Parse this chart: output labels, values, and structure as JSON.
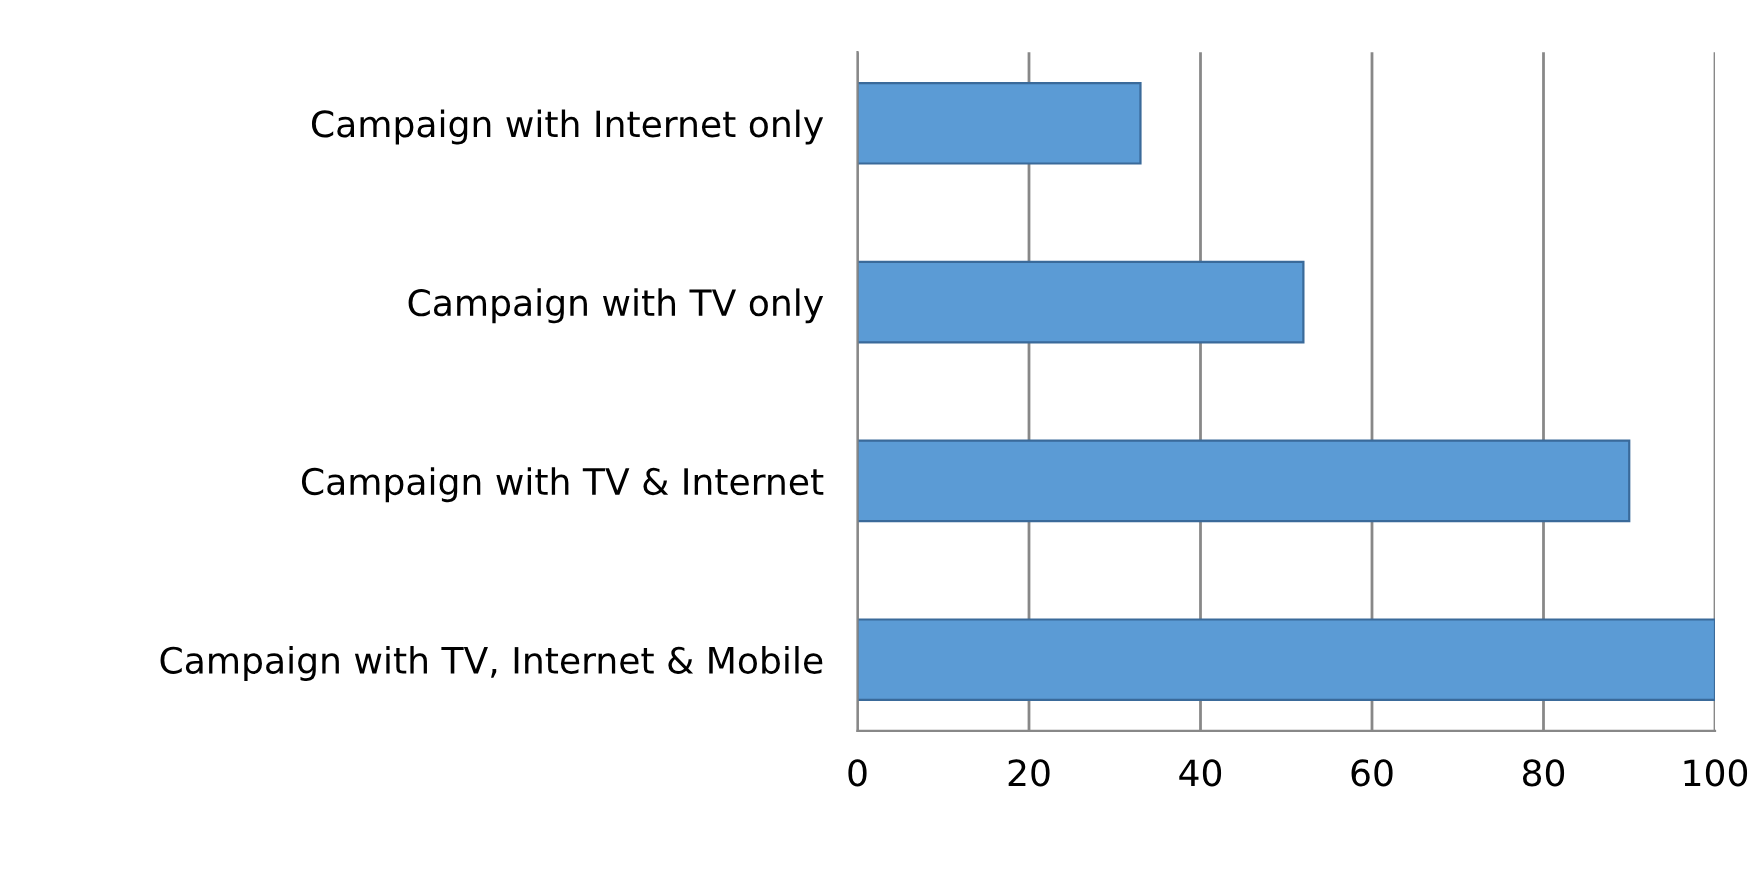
{
  "chart_data": {
    "type": "bar",
    "orientation": "horizontal",
    "categories": [
      "Campaign with Internet only",
      "Campaign with TV only",
      "Campaign with TV & Internet",
      "Campaign with TV, Internet & Mobile"
    ],
    "values": [
      33,
      52,
      90,
      100
    ],
    "color": "#5b9bd5",
    "xlim": [
      0,
      100
    ],
    "xticks": [
      0,
      20,
      40,
      60,
      80,
      100
    ],
    "grid": "x"
  }
}
